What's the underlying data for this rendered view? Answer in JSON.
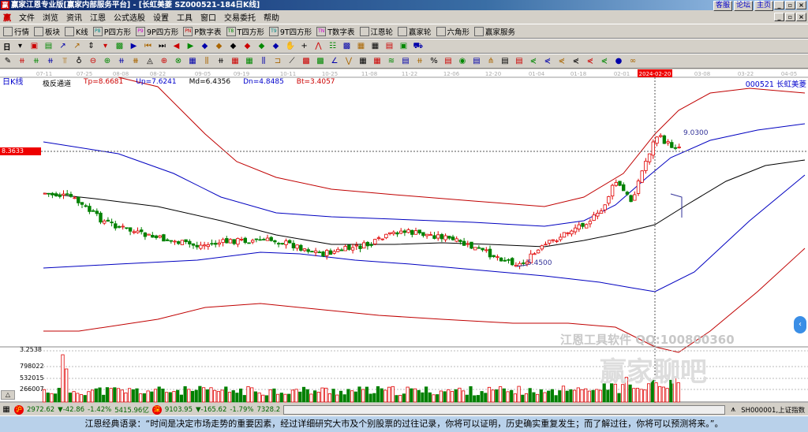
{
  "window": {
    "title": "赢家江恩专业版[赢家内部服务平台] - [长虹美菱   SZ000521-184日K线]",
    "logo": "赢",
    "links": [
      "客服",
      "论坛",
      "主页"
    ],
    "controls": [
      "_",
      "▫",
      "×"
    ]
  },
  "menu": {
    "items": [
      "文件",
      "浏览",
      "资讯",
      "江恩",
      "公式选股",
      "设置",
      "工具",
      "窗口",
      "交易委托",
      "帮助"
    ]
  },
  "toolbar1": {
    "items": [
      {
        "icon": "quotes-icon",
        "label": "行情"
      },
      {
        "icon": "sector-icon",
        "label": "板块"
      },
      {
        "icon": "kline-icon",
        "label": "K线"
      },
      {
        "icon": "P8",
        "label": "P四方形"
      },
      {
        "icon": "P9",
        "label": "9P四方形"
      },
      {
        "icon": "PN",
        "label": "P数字表"
      },
      {
        "icon": "T8",
        "label": "T四方形"
      },
      {
        "icon": "T9",
        "label": "9T四方形"
      },
      {
        "icon": "TN",
        "label": "T数字表"
      },
      {
        "icon": "gann-wheel-icon",
        "label": "江恩轮"
      },
      {
        "icon": "winner-wheel-icon",
        "label": "赢家轮"
      },
      {
        "icon": "hexagon-icon",
        "label": "六角形"
      },
      {
        "icon": "dollar-icon",
        "label": "赢家服务"
      }
    ]
  },
  "toolbar2": {
    "period": "日"
  },
  "chart": {
    "period_label": "日K线",
    "indicator": {
      "name": "极反通道",
      "tp": "Tp=8.6681",
      "up": "Up=7.6241",
      "md": "Md=6.4356",
      "dn": "Dn=4.8485",
      "bt": "Bt=3.4057"
    },
    "dates": [
      "07-11",
      "07-25",
      "08-08",
      "08-22",
      "09-05",
      "09-19",
      "10-11",
      "10-25",
      "11-08",
      "11-22",
      "12-06",
      "12-20",
      "01-04",
      "01-18",
      "02-01",
      "2024-02-20",
      "03-08",
      "03-22",
      "04-05"
    ],
    "stock": "000521  长虹美菱",
    "cursor_price": "8.3633",
    "high_label": "9.0300",
    "low_label": "5.4500",
    "volume_axis": [
      "3.2538",
      "798022",
      "532015",
      "266007"
    ],
    "watermark1": "江恩工具软件 QQ:100800360",
    "watermark2": "赢家聊吧",
    "colors": {
      "up": "#e00000",
      "down": "#008000",
      "upper_band": "#c00000",
      "mid_band": "#0000c0",
      "middle": "#000000"
    }
  },
  "status": {
    "sh_index": "2972.62",
    "sh_change": "▼-42.86",
    "sh_pct": "-1.42%",
    "sh_amount": "5415.96亿",
    "sz_index": "9103.95",
    "sz_change": "▼-165.62",
    "sz_pct": "-1.79%",
    "sz_amount": "7328.2",
    "sh_label": "沪",
    "sz_label": "深",
    "index_name": "SH000001,上证指数"
  },
  "quote": "江恩经典语录：“时间是决定市场走势的重要因素，经过详细研究大市及个别股票的过往记录，你将可以证明，历史确实重复发生；而了解过往，你将可以预测将来。”。"
}
